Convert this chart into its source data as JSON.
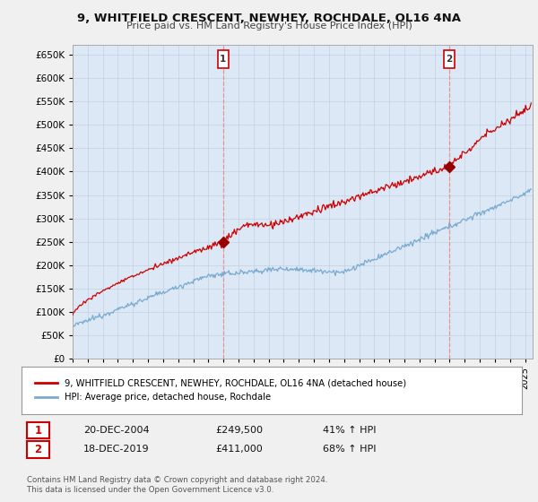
{
  "title": "9, WHITFIELD CRESCENT, NEWHEY, ROCHDALE, OL16 4NA",
  "subtitle": "Price paid vs. HM Land Registry's House Price Index (HPI)",
  "ylim": [
    0,
    670000
  ],
  "yticks": [
    0,
    50000,
    100000,
    150000,
    200000,
    250000,
    300000,
    350000,
    400000,
    450000,
    500000,
    550000,
    600000,
    650000
  ],
  "xlim_start": 1995.0,
  "xlim_end": 2025.5,
  "bg_color": "#dce8f5",
  "red_line_color": "#cc0000",
  "blue_line_color": "#7aaad0",
  "grid_color": "#bbccdd",
  "sale1_x": 2004.97,
  "sale1_y": 249500,
  "sale2_x": 2019.97,
  "sale2_y": 411000,
  "sale1_label": "1",
  "sale2_label": "2",
  "legend_line1": "9, WHITFIELD CRESCENT, NEWHEY, ROCHDALE, OL16 4NA (detached house)",
  "legend_line2": "HPI: Average price, detached house, Rochdale",
  "table_row1_num": "1",
  "table_row1_date": "20-DEC-2004",
  "table_row1_price": "£249,500",
  "table_row1_hpi": "41% ↑ HPI",
  "table_row2_num": "2",
  "table_row2_date": "18-DEC-2019",
  "table_row2_price": "£411,000",
  "table_row2_hpi": "68% ↑ HPI",
  "footnote1": "Contains HM Land Registry data © Crown copyright and database right 2024.",
  "footnote2": "This data is licensed under the Open Government Licence v3.0.",
  "vline_color": "#ee8888",
  "fig_facecolor": "#f0f0f0"
}
